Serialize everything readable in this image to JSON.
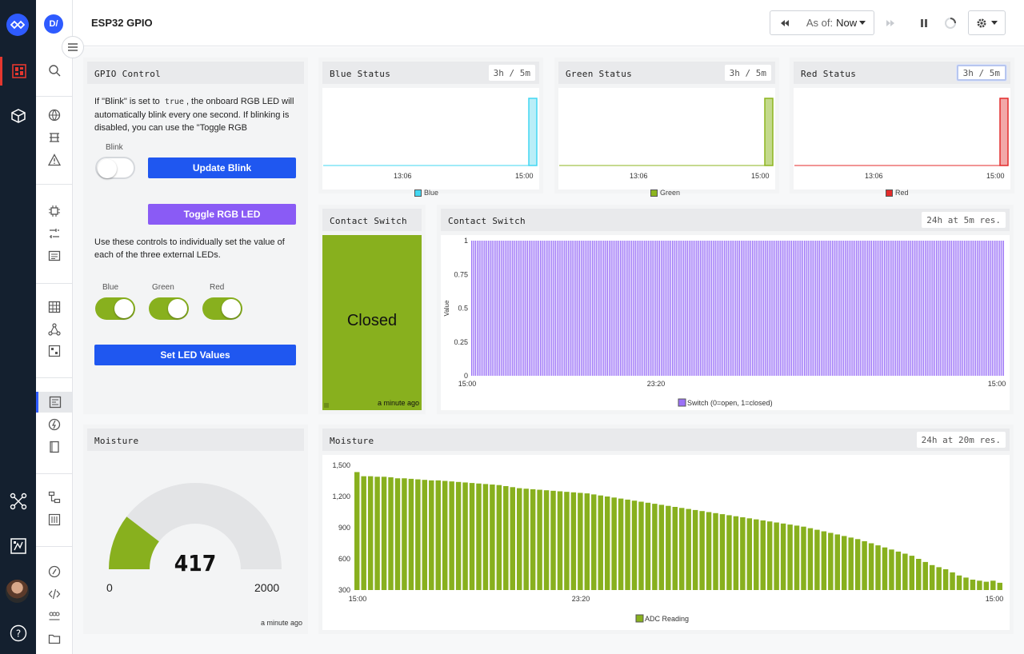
{
  "app": {
    "logo_icon": "tb-logo-icon",
    "user_badge": "D/",
    "page_title": "ESP32 GPIO"
  },
  "rail": {
    "icons": [
      "dashboard-icon",
      "package-icon",
      "network-icon",
      "map-icon",
      "help-icon"
    ]
  },
  "sidebar": {
    "icons": [
      "search-icon",
      "globe-icon",
      "layers-icon",
      "warning-icon",
      "chip-icon",
      "tools-icon",
      "terminal-icon",
      "table-icon",
      "graph-icon",
      "grid-icon",
      "dashboard-icon",
      "lightning-icon",
      "book-icon",
      "workflow-icon",
      "sliders-icon",
      "cube-icon",
      "code-icon",
      "users-icon",
      "folder-icon"
    ]
  },
  "header": {
    "as_of_label": "As of:",
    "as_of_value": "Now"
  },
  "gpio": {
    "title": "GPIO Control",
    "desc_pre": "If \"Blink\" is set to",
    "desc_code": "true",
    "desc_post": ", the onboard RGB LED will automatically blink every one second. If blinking is disabled, you can use the \"Toggle RGB",
    "blink_label": "Blink",
    "blink_on": false,
    "update_blink": "Update Blink",
    "toggle_rgb": "Toggle RGB LED",
    "controls_desc": "Use these controls to individually set the value of each of the three external LEDs.",
    "leds": [
      {
        "label": "Blue",
        "on": true
      },
      {
        "label": "Green",
        "on": true
      },
      {
        "label": "Red",
        "on": true
      }
    ],
    "set_led": "Set LED Values"
  },
  "status_cards": [
    {
      "title": "Blue Status",
      "range": "3h / 5m",
      "ticks": [
        "13:06",
        "15:00"
      ],
      "legend": "Blue",
      "color": "#42d7f2",
      "fill": "#b9eef8"
    },
    {
      "title": "Green Status",
      "range": "3h / 5m",
      "ticks": [
        "13:06",
        "15:00"
      ],
      "legend": "Green",
      "color": "#8db51f",
      "fill": "#c3d98b"
    },
    {
      "title": "Red Status",
      "range": "3h / 5m",
      "ticks": [
        "13:06",
        "15:00"
      ],
      "legend": "Red",
      "color": "#e32b2b",
      "fill": "#f2a8a8"
    }
  ],
  "contact_state": {
    "title": "Contact Switch",
    "value": "Closed",
    "updated": "a minute ago",
    "color": "#88b01e"
  },
  "moisture_gauge": {
    "title": "Moisture",
    "value": "417",
    "min": "0",
    "max": "2000",
    "updated": "a minute ago",
    "fill_fraction": 0.2085,
    "color": "#88b01e"
  },
  "chart_data": [
    {
      "type": "bar",
      "title": "Contact Switch",
      "range_label": "24h at 5m res.",
      "ylabel": "Value",
      "ylim": [
        0,
        1
      ],
      "y_ticks": [
        "0",
        "0.25",
        "0.5",
        "0.75",
        "1"
      ],
      "x_ticks": [
        "15:00",
        "23:20",
        "15:00"
      ],
      "series": [
        {
          "name": "Switch (0=open, 1=closed)",
          "color": "#9b72f7",
          "values": [
            1,
            1,
            1,
            1,
            1,
            1,
            1,
            1,
            1,
            1,
            1,
            1,
            1,
            1,
            1,
            1,
            1,
            1,
            1,
            1,
            1,
            1,
            1,
            1,
            1,
            1,
            1,
            1,
            1,
            1,
            1,
            1,
            1,
            1,
            1,
            1,
            1,
            1,
            1,
            1,
            1,
            1,
            1,
            1,
            1,
            1,
            1,
            1,
            1,
            1,
            1,
            1,
            1,
            1,
            1,
            1,
            1,
            1,
            1,
            1,
            1,
            1,
            1,
            1,
            1,
            1,
            1,
            1,
            1,
            1,
            1,
            1,
            1,
            1,
            1,
            1,
            1,
            1,
            1,
            1,
            1,
            1,
            1,
            1,
            1,
            1,
            1,
            1,
            1,
            1,
            1,
            1,
            1,
            1,
            1,
            1,
            1,
            1,
            1,
            1,
            1,
            1,
            1,
            1,
            1,
            1,
            1,
            1,
            1,
            1,
            1,
            1,
            1,
            1,
            1,
            1,
            1,
            1,
            1,
            1,
            1,
            1,
            1,
            1,
            1,
            1,
            1,
            1,
            1,
            1,
            1,
            1,
            1,
            1,
            1,
            1,
            1,
            1,
            1,
            1,
            1,
            1,
            1,
            1,
            1,
            1,
            1,
            1,
            1,
            1,
            1,
            1,
            1,
            1,
            1,
            1,
            1,
            1,
            1,
            1,
            1,
            1,
            1,
            1,
            1,
            1,
            1,
            1,
            1,
            1,
            1,
            1,
            1,
            1,
            1,
            1,
            1,
            1,
            1,
            1,
            1,
            1,
            1,
            1,
            1,
            1,
            1,
            1,
            1,
            1,
            1,
            1,
            1,
            1,
            1,
            1,
            1,
            1,
            1,
            1,
            1,
            1,
            1,
            1,
            1,
            1,
            1,
            1,
            1,
            1,
            1,
            1,
            1,
            1,
            1,
            1,
            1,
            1,
            1,
            1,
            1,
            1,
            1,
            1,
            1,
            1,
            1,
            1,
            1,
            1,
            1,
            1,
            1,
            1,
            1,
            1,
            1,
            1,
            1,
            1,
            1,
            1,
            1,
            1,
            1,
            1,
            1,
            1,
            1,
            1,
            1,
            1,
            1,
            1,
            1,
            1,
            1,
            1,
            1,
            1,
            1,
            1,
            1,
            1,
            1,
            1,
            1,
            1,
            1,
            1,
            1,
            1,
            1,
            1,
            1,
            1,
            1,
            1,
            1,
            1,
            1,
            1,
            1,
            1,
            1,
            1,
            1
          ]
        }
      ],
      "grid": false,
      "legend_position": "bottom"
    },
    {
      "type": "bar",
      "title": "Moisture",
      "range_label": "24h at 20m res.",
      "ylim": [
        300,
        1500
      ],
      "y_ticks": [
        "300",
        "600",
        "900",
        "1,200",
        "1,500"
      ],
      "x_ticks": [
        "15:00",
        "23:20",
        "15:00"
      ],
      "series": [
        {
          "name": "ADC Reading",
          "color": "#88b01e",
          "values": [
            1435,
            1395,
            1395,
            1390,
            1390,
            1385,
            1375,
            1375,
            1370,
            1365,
            1360,
            1355,
            1355,
            1350,
            1345,
            1340,
            1335,
            1330,
            1325,
            1320,
            1315,
            1310,
            1300,
            1290,
            1280,
            1275,
            1270,
            1265,
            1260,
            1255,
            1250,
            1245,
            1240,
            1235,
            1230,
            1220,
            1210,
            1200,
            1190,
            1180,
            1170,
            1160,
            1150,
            1140,
            1130,
            1120,
            1110,
            1100,
            1090,
            1080,
            1070,
            1060,
            1050,
            1040,
            1030,
            1020,
            1010,
            1000,
            990,
            980,
            970,
            960,
            950,
            940,
            930,
            920,
            910,
            895,
            880,
            865,
            850,
            835,
            820,
            805,
            790,
            770,
            750,
            730,
            710,
            690,
            670,
            650,
            630,
            600,
            570,
            540,
            520,
            500,
            470,
            440,
            420,
            400,
            390,
            380,
            390,
            370
          ]
        }
      ],
      "grid": false,
      "legend_position": "bottom"
    }
  ]
}
